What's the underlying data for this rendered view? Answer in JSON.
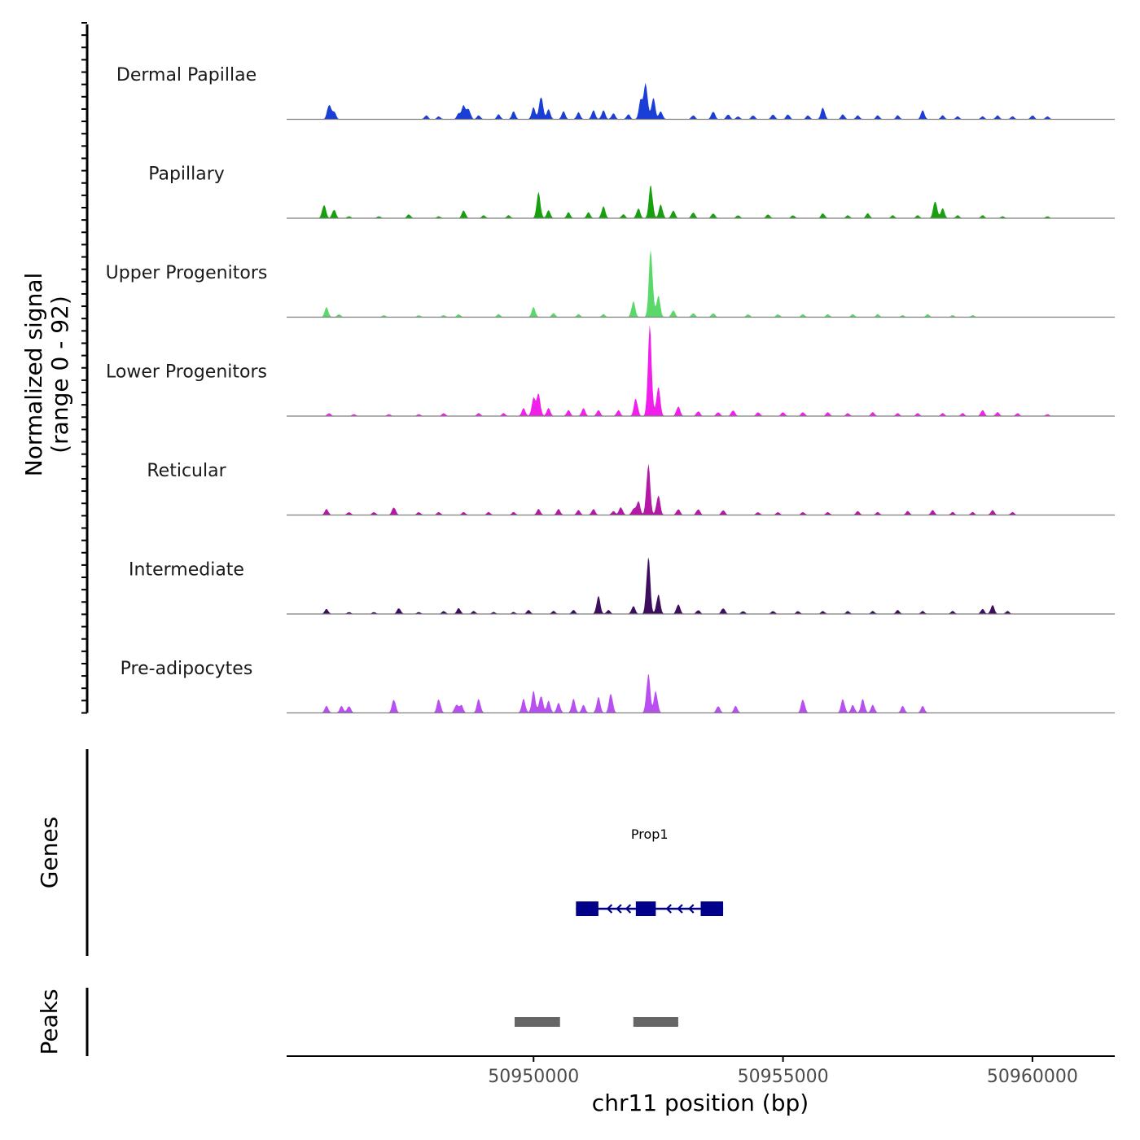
{
  "chart_data": {
    "type": "area",
    "title": "",
    "ylabel_line1": "Normalized signal",
    "ylabel_line2": "(range 0 - 92)",
    "ylim": [
      0,
      92
    ],
    "xlabel": "chr11 position (bp)",
    "xlim": [
      50945050,
      50961650
    ],
    "x_ticks": [
      50950000,
      50955000,
      50960000
    ],
    "x_tick_labels": [
      "50950000",
      "50955000",
      "50960000"
    ],
    "series": [
      {
        "name": "Dermal Papillae",
        "color": "#1a3fd6",
        "peaks": [
          [
            50945900,
            15
          ],
          [
            50946000,
            8
          ],
          [
            50947850,
            4
          ],
          [
            50948100,
            3
          ],
          [
            50948500,
            6
          ],
          [
            50948600,
            14
          ],
          [
            50948700,
            10
          ],
          [
            50948900,
            4
          ],
          [
            50949300,
            5
          ],
          [
            50949600,
            8
          ],
          [
            50950000,
            12
          ],
          [
            50950150,
            24
          ],
          [
            50950300,
            10
          ],
          [
            50950600,
            8
          ],
          [
            50950900,
            7
          ],
          [
            50951200,
            9
          ],
          [
            50951400,
            9
          ],
          [
            50951600,
            6
          ],
          [
            50951900,
            5
          ],
          [
            50952150,
            20
          ],
          [
            50952250,
            36
          ],
          [
            50952400,
            22
          ],
          [
            50952550,
            8
          ],
          [
            50953200,
            4
          ],
          [
            50953600,
            8
          ],
          [
            50953900,
            5
          ],
          [
            50954100,
            3
          ],
          [
            50954400,
            4
          ],
          [
            50954800,
            5
          ],
          [
            50955100,
            5
          ],
          [
            50955500,
            4
          ],
          [
            50955800,
            12
          ],
          [
            50956200,
            5
          ],
          [
            50956500,
            4
          ],
          [
            50956900,
            4
          ],
          [
            50957300,
            4
          ],
          [
            50957800,
            9
          ],
          [
            50958200,
            4
          ],
          [
            50958500,
            3
          ],
          [
            50959000,
            3
          ],
          [
            50959300,
            4
          ],
          [
            50959600,
            3
          ],
          [
            50960000,
            4
          ],
          [
            50960300,
            3
          ]
        ]
      },
      {
        "name": "Papillary",
        "color": "#16a00e",
        "peaks": [
          [
            50945800,
            14
          ],
          [
            50946000,
            9
          ],
          [
            50946300,
            2
          ],
          [
            50946900,
            2
          ],
          [
            50947500,
            4
          ],
          [
            50948100,
            2
          ],
          [
            50948600,
            8
          ],
          [
            50949000,
            3
          ],
          [
            50949500,
            3
          ],
          [
            50950100,
            26
          ],
          [
            50950300,
            8
          ],
          [
            50950700,
            6
          ],
          [
            50951100,
            6
          ],
          [
            50951400,
            12
          ],
          [
            50951800,
            4
          ],
          [
            50952100,
            10
          ],
          [
            50952350,
            34
          ],
          [
            50952550,
            14
          ],
          [
            50952800,
            8
          ],
          [
            50953200,
            6
          ],
          [
            50953600,
            5
          ],
          [
            50954100,
            3
          ],
          [
            50954700,
            4
          ],
          [
            50955200,
            3
          ],
          [
            50955800,
            5
          ],
          [
            50956300,
            3
          ],
          [
            50956700,
            5
          ],
          [
            50957200,
            3
          ],
          [
            50957700,
            3
          ],
          [
            50958050,
            18
          ],
          [
            50958200,
            10
          ],
          [
            50958500,
            3
          ],
          [
            50959000,
            3
          ],
          [
            50959400,
            2
          ],
          [
            50960300,
            2
          ]
        ]
      },
      {
        "name": "Upper Progenitors",
        "color": "#5ad96a",
        "peaks": [
          [
            50945850,
            10
          ],
          [
            50946100,
            3
          ],
          [
            50947000,
            2
          ],
          [
            50947700,
            2
          ],
          [
            50948200,
            2
          ],
          [
            50948500,
            3
          ],
          [
            50949300,
            3
          ],
          [
            50950000,
            10
          ],
          [
            50950400,
            4
          ],
          [
            50950900,
            3
          ],
          [
            50951400,
            3
          ],
          [
            50952000,
            16
          ],
          [
            50952350,
            68
          ],
          [
            50952500,
            22
          ],
          [
            50952800,
            7
          ],
          [
            50953200,
            4
          ],
          [
            50953600,
            4
          ],
          [
            50954300,
            3
          ],
          [
            50954900,
            3
          ],
          [
            50955400,
            3
          ],
          [
            50955900,
            3
          ],
          [
            50956400,
            3
          ],
          [
            50956900,
            3
          ],
          [
            50957400,
            2
          ],
          [
            50957900,
            3
          ],
          [
            50958400,
            2
          ],
          [
            50958800,
            2
          ]
        ]
      },
      {
        "name": "Lower Progenitors",
        "color": "#f01fea",
        "peaks": [
          [
            50945900,
            3
          ],
          [
            50946400,
            2
          ],
          [
            50947100,
            2
          ],
          [
            50947700,
            2
          ],
          [
            50948200,
            3
          ],
          [
            50948900,
            3
          ],
          [
            50949400,
            3
          ],
          [
            50949800,
            8
          ],
          [
            50950000,
            18
          ],
          [
            50950100,
            22
          ],
          [
            50950300,
            8
          ],
          [
            50950700,
            6
          ],
          [
            50951000,
            8
          ],
          [
            50951300,
            6
          ],
          [
            50951700,
            6
          ],
          [
            50952050,
            18
          ],
          [
            50952330,
            90
          ],
          [
            50952500,
            30
          ],
          [
            50952900,
            10
          ],
          [
            50953300,
            5
          ],
          [
            50953700,
            4
          ],
          [
            50954000,
            6
          ],
          [
            50954500,
            4
          ],
          [
            50955000,
            4
          ],
          [
            50955400,
            4
          ],
          [
            50955900,
            4
          ],
          [
            50956300,
            3
          ],
          [
            50956800,
            4
          ],
          [
            50957300,
            3
          ],
          [
            50957700,
            3
          ],
          [
            50958200,
            3
          ],
          [
            50958600,
            3
          ],
          [
            50959000,
            6
          ],
          [
            50959300,
            4
          ],
          [
            50959700,
            3
          ],
          [
            50960300,
            2
          ]
        ]
      },
      {
        "name": "Reticular",
        "color": "#b21aa6",
        "peaks": [
          [
            50945850,
            6
          ],
          [
            50946300,
            3
          ],
          [
            50946800,
            3
          ],
          [
            50947200,
            8
          ],
          [
            50947700,
            3
          ],
          [
            50948100,
            3
          ],
          [
            50948600,
            3
          ],
          [
            50949100,
            3
          ],
          [
            50949600,
            3
          ],
          [
            50950100,
            6
          ],
          [
            50950500,
            6
          ],
          [
            50950900,
            5
          ],
          [
            50951200,
            6
          ],
          [
            50951600,
            4
          ],
          [
            50951750,
            8
          ],
          [
            50952000,
            6
          ],
          [
            50952100,
            14
          ],
          [
            50952300,
            52
          ],
          [
            50952500,
            20
          ],
          [
            50952900,
            6
          ],
          [
            50953300,
            6
          ],
          [
            50953800,
            5
          ],
          [
            50954500,
            3
          ],
          [
            50954900,
            3
          ],
          [
            50955400,
            3
          ],
          [
            50955900,
            3
          ],
          [
            50956500,
            4
          ],
          [
            50956900,
            3
          ],
          [
            50957500,
            4
          ],
          [
            50958000,
            5
          ],
          [
            50958400,
            3
          ],
          [
            50958800,
            3
          ],
          [
            50959200,
            5
          ],
          [
            50959600,
            3
          ]
        ]
      },
      {
        "name": "Intermediate",
        "color": "#3d0d5e",
        "peaks": [
          [
            50945850,
            5
          ],
          [
            50946300,
            2
          ],
          [
            50946800,
            2
          ],
          [
            50947300,
            6
          ],
          [
            50947700,
            2
          ],
          [
            50948200,
            3
          ],
          [
            50948500,
            6
          ],
          [
            50948800,
            3
          ],
          [
            50949200,
            2
          ],
          [
            50949600,
            2
          ],
          [
            50949900,
            4
          ],
          [
            50950400,
            3
          ],
          [
            50950800,
            4
          ],
          [
            50951300,
            18
          ],
          [
            50951500,
            4
          ],
          [
            50952000,
            8
          ],
          [
            50952300,
            58
          ],
          [
            50952500,
            20
          ],
          [
            50952900,
            10
          ],
          [
            50953300,
            4
          ],
          [
            50953800,
            6
          ],
          [
            50954200,
            3
          ],
          [
            50954800,
            3
          ],
          [
            50955300,
            3
          ],
          [
            50955800,
            3
          ],
          [
            50956300,
            3
          ],
          [
            50956800,
            3
          ],
          [
            50957300,
            4
          ],
          [
            50957800,
            3
          ],
          [
            50958400,
            3
          ],
          [
            50959000,
            5
          ],
          [
            50959200,
            9
          ],
          [
            50959500,
            3
          ]
        ]
      },
      {
        "name": "Pre-adipocytes",
        "color": "#b84ff0",
        "peaks": [
          [
            50945850,
            7
          ],
          [
            50946150,
            7
          ],
          [
            50946300,
            7
          ],
          [
            50947200,
            14
          ],
          [
            50948100,
            14
          ],
          [
            50948450,
            8
          ],
          [
            50948550,
            8
          ],
          [
            50948900,
            14
          ],
          [
            50949800,
            14
          ],
          [
            50950000,
            22
          ],
          [
            50950150,
            18
          ],
          [
            50950300,
            12
          ],
          [
            50950500,
            10
          ],
          [
            50950800,
            14
          ],
          [
            50951000,
            8
          ],
          [
            50951300,
            16
          ],
          [
            50951550,
            20
          ],
          [
            50952300,
            40
          ],
          [
            50952450,
            22
          ],
          [
            50953700,
            7
          ],
          [
            50954050,
            7
          ],
          [
            50955400,
            14
          ],
          [
            50956200,
            14
          ],
          [
            50956400,
            8
          ],
          [
            50956600,
            14
          ],
          [
            50956800,
            8
          ],
          [
            50957400,
            7
          ],
          [
            50957800,
            7
          ]
        ]
      }
    ],
    "genes": [
      {
        "name": "Prop1",
        "start": 50950850,
        "end": 50953800,
        "strand": "-",
        "exons": [
          [
            50950850,
            50951300
          ],
          [
            50952050,
            50952450
          ],
          [
            50953350,
            50953800
          ]
        ]
      }
    ],
    "peaks_regions": [
      [
        50949620,
        50950530
      ],
      [
        50952000,
        50952900
      ]
    ],
    "gene_track_label": "Genes",
    "peak_track_label": "Peaks",
    "gene_color": "#00008b",
    "peak_color": "#666666"
  }
}
